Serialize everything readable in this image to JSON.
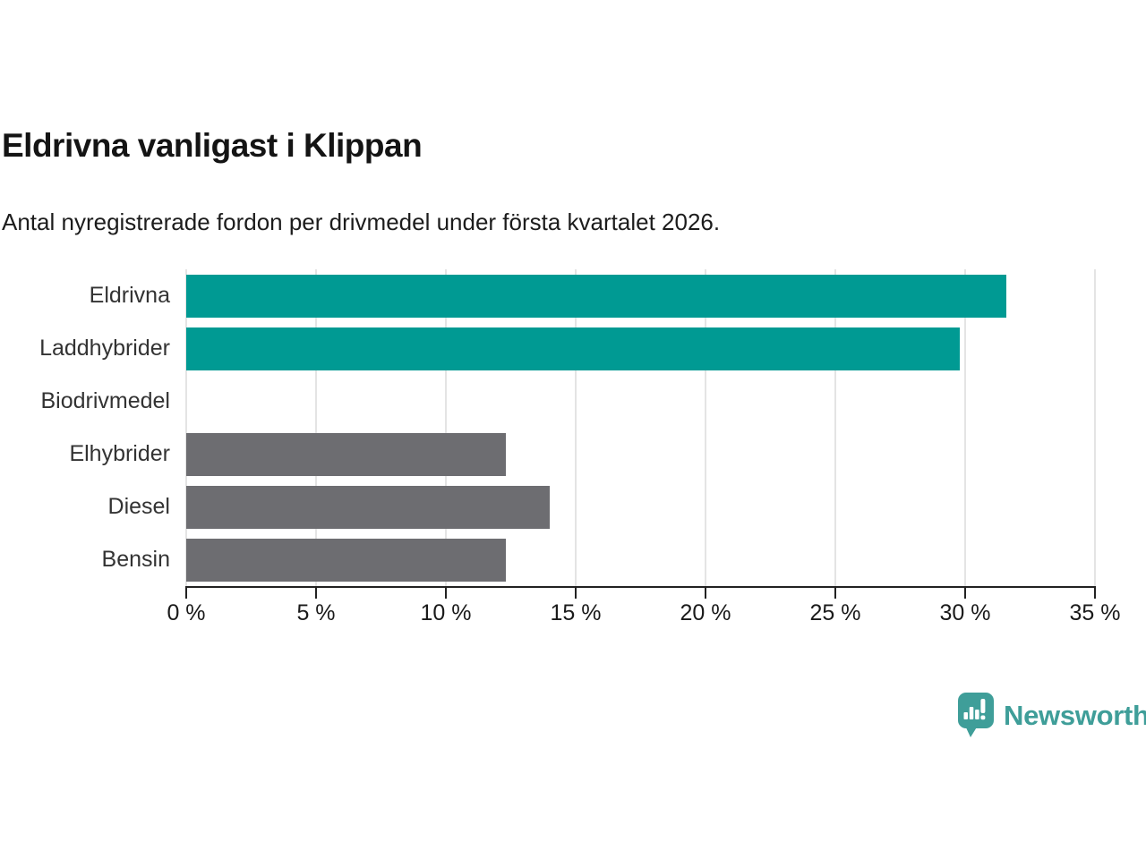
{
  "header": {
    "title": "Eldrivna vanligast i Klippan",
    "subtitle": "Antal nyregistrerade fordon per drivmedel under första kvartalet 2026."
  },
  "chart_data": {
    "type": "bar",
    "orientation": "horizontal",
    "title": "Eldrivna vanligast i Klippan",
    "subtitle": "Antal nyregistrerade fordon per drivmedel under första kvartalet 2026.",
    "categories": [
      "Eldrivna",
      "Laddhybrider",
      "Biodrivmedel",
      "Elhybrider",
      "Diesel",
      "Bensin"
    ],
    "values": [
      31.6,
      29.8,
      0,
      12.3,
      14.0,
      12.3
    ],
    "unit": "%",
    "bar_colors": [
      "#009a93",
      "#009a93",
      "#6d6d71",
      "#6d6d71",
      "#6d6d71",
      "#6d6d71"
    ],
    "xlabel": "",
    "ylabel": "",
    "xlim": [
      0,
      35
    ],
    "x_ticks": [
      0,
      5,
      10,
      15,
      20,
      25,
      30,
      35
    ],
    "x_tick_labels": [
      "0 %",
      "5 %",
      "10 %",
      "15 %",
      "20 %",
      "25 %",
      "30 %",
      "35 %"
    ],
    "grid": "vertical",
    "legend": "none"
  },
  "branding": {
    "logo_text": "Newsworthy",
    "logo_icon": "newsworthy-speech-bubble-bar-chart-icon",
    "logo_color": "#3f9e99"
  },
  "colors": {
    "accent_teal": "#009a93",
    "bar_gray": "#6d6d71",
    "gridline": "#e4e4e4",
    "axis": "#222222",
    "title_text": "#141414",
    "label_text": "#333333",
    "background": "#ffffff"
  }
}
